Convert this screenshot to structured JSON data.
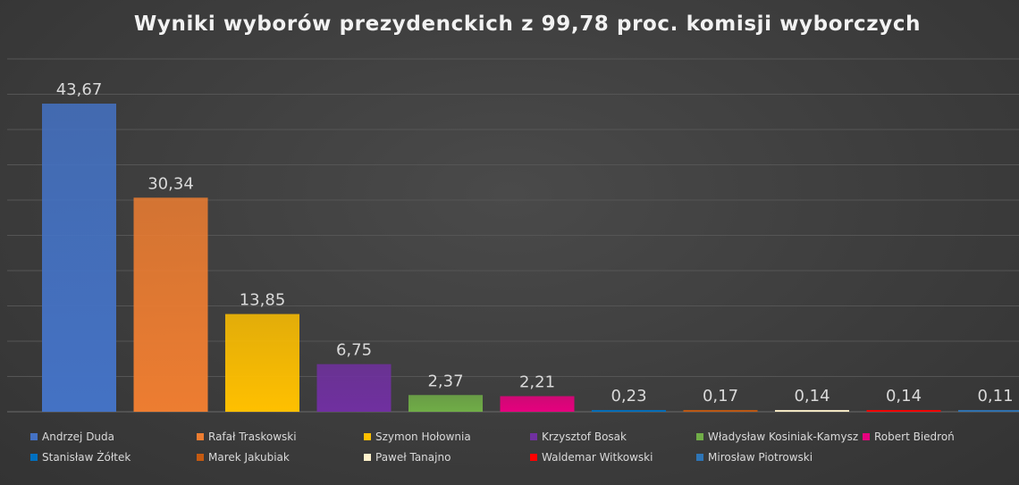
{
  "chart_data": {
    "type": "bar",
    "title": "Wyniki wyborów prezydenckich z 99,78 proc. komisji wyborczych",
    "categories": [
      "Andrzej Duda",
      "Rafał Traskowski",
      "Szymon Hołownia",
      "Krzysztof Bosak",
      "Władysław Kosiniak-Kamysz",
      "Robert Biedroń",
      "Stanisław Żółtek",
      "Marek Jakubiak",
      "Paweł Tanajno",
      "Waldemar Witkowski",
      "Mirosław Piotrowski"
    ],
    "values": [
      43.67,
      30.34,
      13.85,
      6.75,
      2.37,
      2.21,
      0.23,
      0.17,
      0.14,
      0.14,
      0.11
    ],
    "value_labels": [
      "43,67",
      "30,34",
      "13,85",
      "6,75",
      "2,37",
      "2,21",
      "0,23",
      "0,17",
      "0,14",
      "0,14",
      "0,11"
    ],
    "colors": [
      "#4472c4",
      "#ed7d31",
      "#ffc000",
      "#7030a0",
      "#70ad47",
      "#e6007e",
      "#0070c0",
      "#c55a11",
      "#fff2cc",
      "#ff0000",
      "#2e75b6"
    ],
    "ylim": [
      0,
      50
    ],
    "grid": true,
    "legend_position": "bottom",
    "xlabel": "",
    "ylabel": ""
  }
}
